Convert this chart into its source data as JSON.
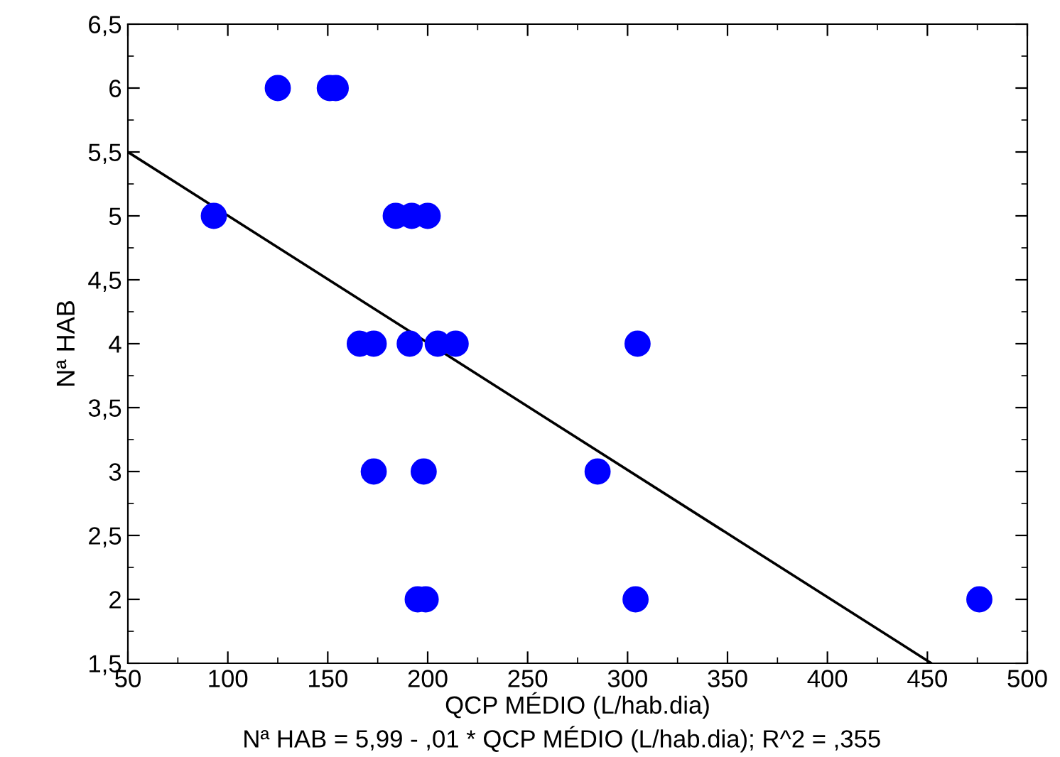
{
  "chart_data": {
    "type": "scatter",
    "xlabel": "QCP MÉDIO (L/hab.dia)",
    "ylabel": "Nª HAB",
    "annotations": [
      "Nª HAB = 5,99 - ,01 * QCP MÉDIO (L/hab.dia); R^2 = ,355"
    ],
    "xlim": [
      50,
      500
    ],
    "xticks": [
      50,
      100,
      150,
      200,
      250,
      300,
      350,
      400,
      450,
      500
    ],
    "ylim": [
      1.5,
      6.5
    ],
    "yticks": [
      {
        "value": 1.5,
        "label": "1,5"
      },
      2,
      {
        "value": 2.5,
        "label": "2,5"
      },
      3,
      {
        "value": 3.5,
        "label": "3,5"
      },
      4,
      {
        "value": 4.5,
        "label": "4,5"
      },
      5,
      {
        "value": 5.5,
        "label": "5,5"
      },
      6,
      {
        "value": 6.5,
        "label": "6,5"
      }
    ],
    "grid": false,
    "legend": false,
    "series": [
      {
        "type": "scatter",
        "color": "#0000ff",
        "marker": "circle",
        "x": [
          125,
          151,
          154,
          93,
          184,
          192,
          200,
          166,
          173,
          191,
          205,
          214,
          305,
          173,
          198,
          285,
          195,
          199,
          304,
          476
        ],
        "values": [
          6,
          6,
          6,
          5,
          5,
          5,
          5,
          4,
          4,
          4,
          4,
          4,
          4,
          3,
          3,
          3,
          2,
          2,
          2,
          2
        ]
      },
      {
        "type": "line",
        "color": "#000000",
        "marker": "none",
        "line_style": "solid",
        "x": [
          50,
          452
        ],
        "values": [
          5.5,
          1.5
        ]
      }
    ]
  }
}
